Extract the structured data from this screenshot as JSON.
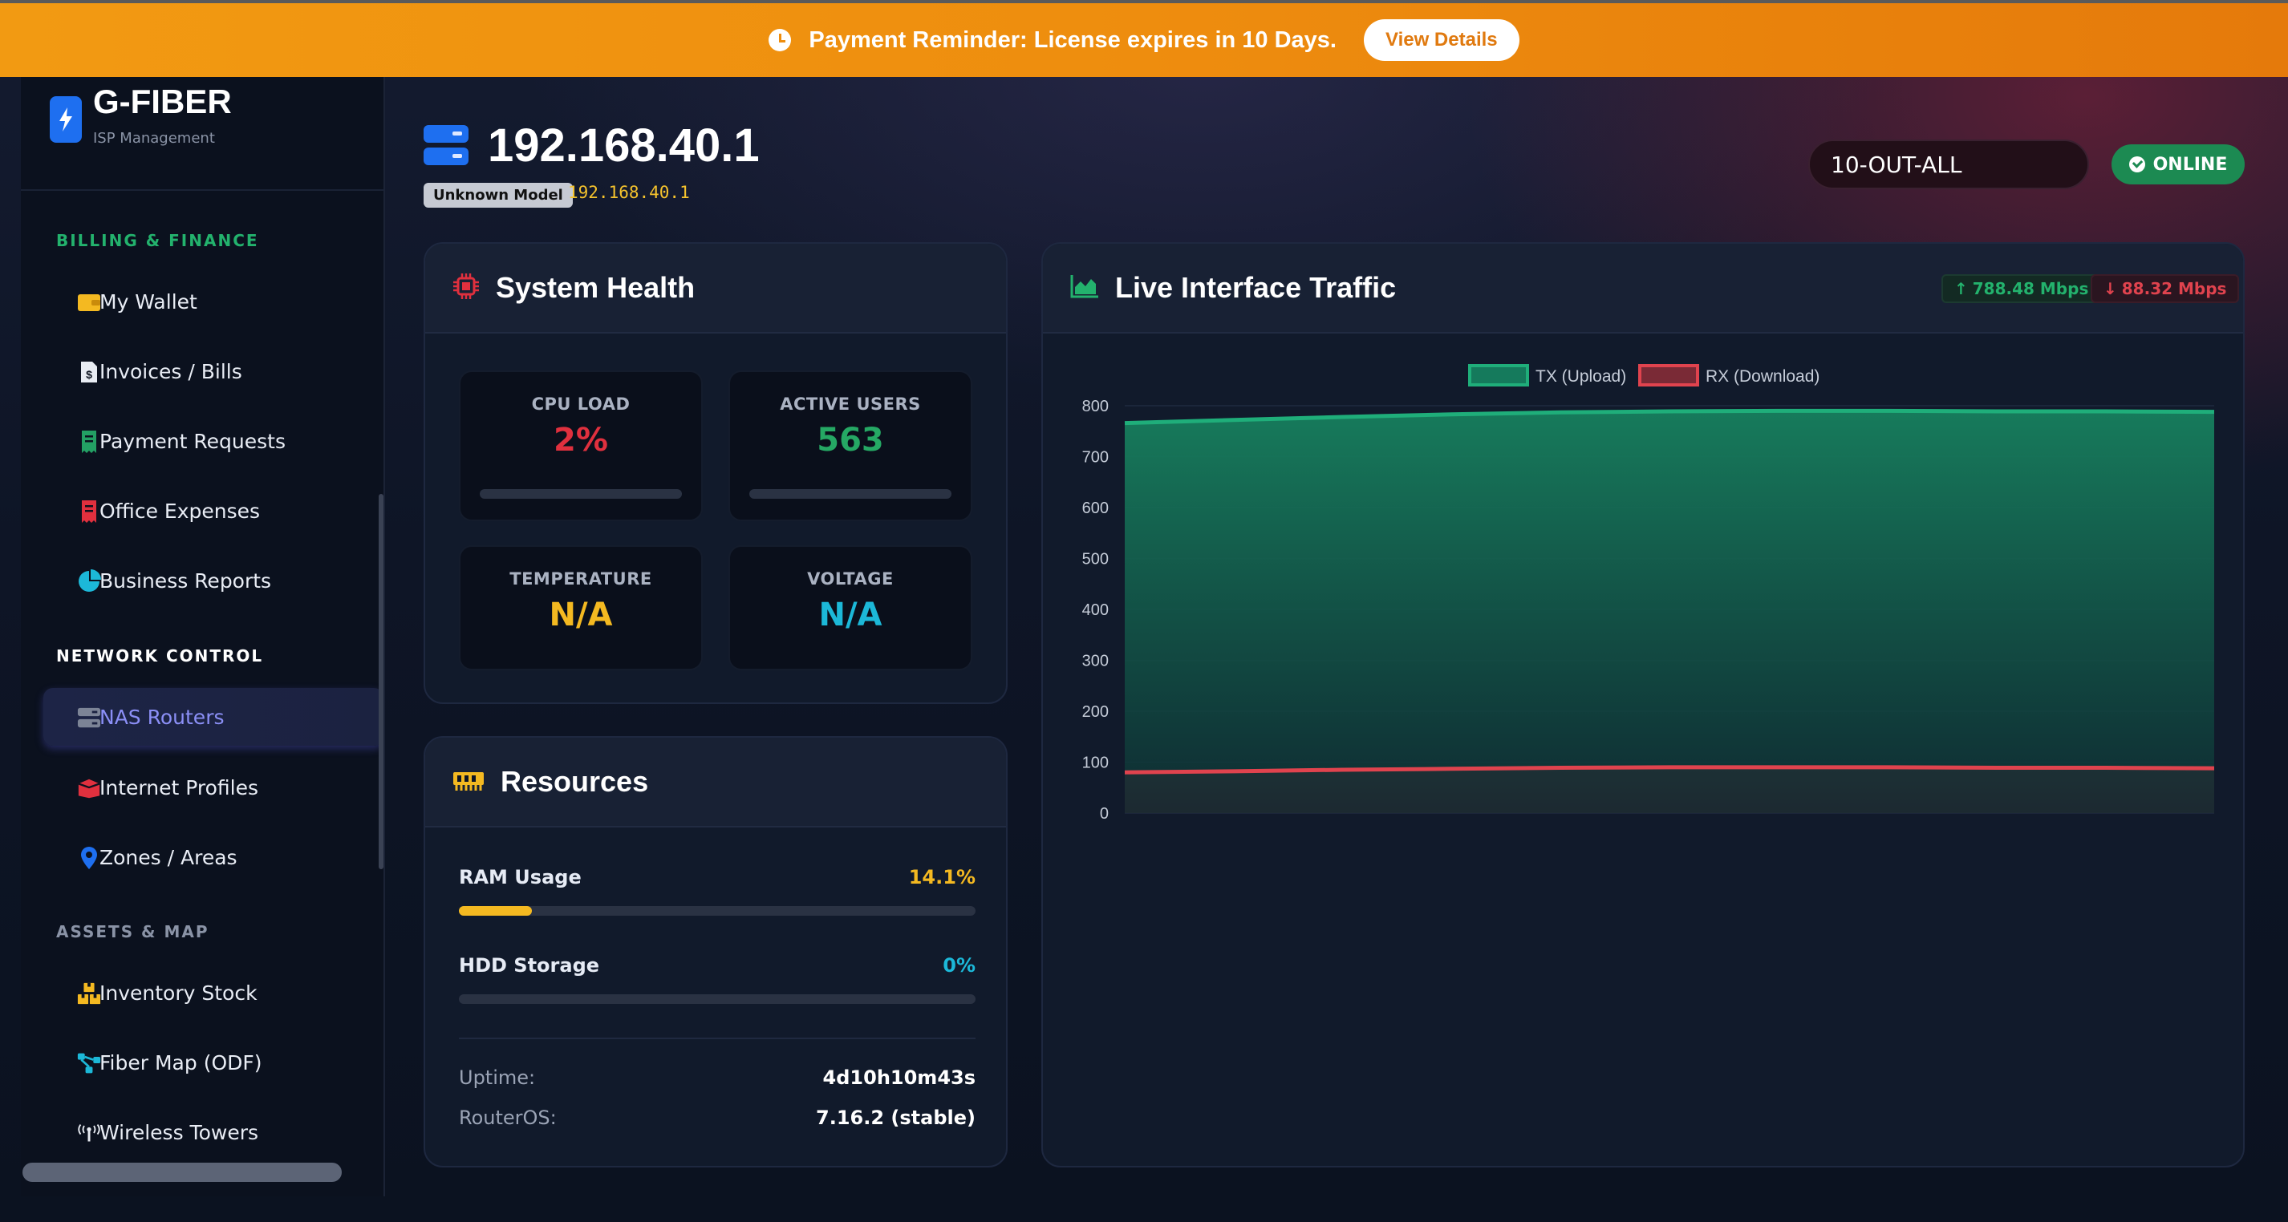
{
  "banner": {
    "message": "Payment Reminder: License expires in 10 Days.",
    "button": "View Details"
  },
  "brand": {
    "name": "G-FIBER",
    "subtitle": "ISP Management"
  },
  "sidebar": {
    "sections": [
      {
        "title": "BILLING & FINANCE",
        "color": "#23b26d",
        "items": [
          {
            "label": "My Wallet",
            "icon": "wallet-icon"
          },
          {
            "label": "Invoices / Bills",
            "icon": "invoice-icon"
          },
          {
            "label": "Payment Requests",
            "icon": "receipt-icon"
          },
          {
            "label": "Office Expenses",
            "icon": "expense-receipt-icon"
          },
          {
            "label": "Business Reports",
            "icon": "pie-chart-icon"
          }
        ]
      },
      {
        "title": "NETWORK CONTROL",
        "color": "#ffffff",
        "items": [
          {
            "label": "NAS Routers",
            "icon": "server-icon",
            "active": true
          },
          {
            "label": "Internet Profiles",
            "icon": "box-icon"
          },
          {
            "label": "Zones / Areas",
            "icon": "map-pin-icon"
          }
        ]
      },
      {
        "title": "ASSETS & MAP",
        "color": "#8a93a6",
        "items": [
          {
            "label": "Inventory Stock",
            "icon": "boxes-icon"
          },
          {
            "label": "Fiber Map (ODF)",
            "icon": "network-icon"
          },
          {
            "label": "Wireless Towers",
            "icon": "tower-icon"
          }
        ]
      }
    ]
  },
  "header": {
    "ip": "192.168.40.1",
    "model": "Unknown Model",
    "ip_sub": "192.168.40.1",
    "interface": "10-OUT-ALL",
    "status": "ONLINE"
  },
  "system_health": {
    "title": "System Health",
    "cpu": {
      "label": "CPU LOAD",
      "value": "2%",
      "color": "#e0303e"
    },
    "users": {
      "label": "ACTIVE USERS",
      "value": "563",
      "color": "#25a864"
    },
    "temp": {
      "label": "TEMPERATURE",
      "value": "N/A",
      "color": "#f4b921"
    },
    "voltage": {
      "label": "VOLTAGE",
      "value": "N/A",
      "color": "#1cb8d8"
    }
  },
  "resources": {
    "title": "Resources",
    "ram": {
      "label": "RAM Usage",
      "value": "14.1%",
      "fraction": 0.141,
      "color": "#f4b921"
    },
    "hdd": {
      "label": "HDD Storage",
      "value": "0%",
      "fraction": 0,
      "color": "#1cb8d8"
    },
    "uptime": {
      "label": "Uptime:",
      "value": "4d10h10m43s"
    },
    "os": {
      "label": "RouterOS:",
      "value": "7.16.2 (stable)"
    }
  },
  "traffic": {
    "title": "Live Interface Traffic",
    "tx_rate": "788.48 Mbps",
    "rx_rate": "88.32 Mbps"
  },
  "chart_data": {
    "type": "area",
    "x": [
      0,
      1,
      2,
      3,
      4,
      5,
      6,
      7,
      8,
      9,
      10
    ],
    "series": [
      {
        "name": "TX (Upload)",
        "color": "#1fae7a",
        "values": [
          766,
          772,
          778,
          783,
          787,
          789,
          790,
          790,
          789,
          789,
          788
        ]
      },
      {
        "name": "RX (Download)",
        "color": "#e0434e",
        "values": [
          80,
          82,
          85,
          87,
          89,
          90,
          90,
          90,
          89,
          89,
          88
        ]
      }
    ],
    "ylim": [
      0,
      800
    ],
    "yticks": [
      "800",
      "700",
      "600",
      "500",
      "400",
      "300",
      "200",
      "100",
      "0"
    ],
    "legend": "top-center",
    "grid": true
  }
}
